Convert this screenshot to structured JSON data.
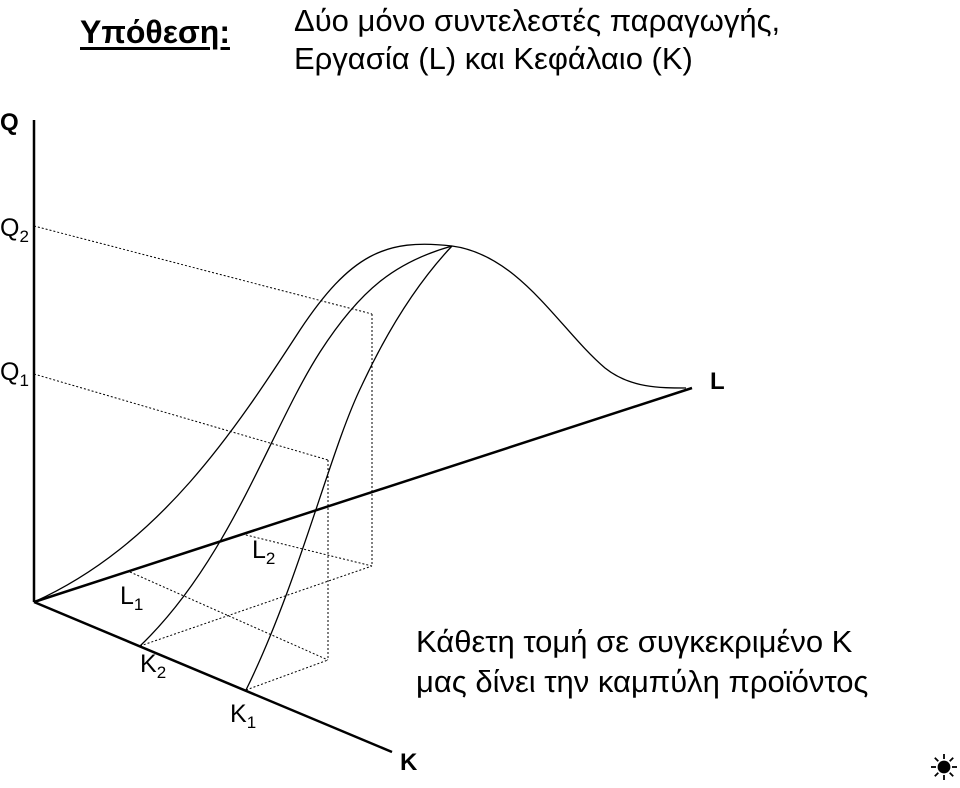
{
  "header": {
    "hypothesis_label": "Υπόθεση:",
    "hypothesis_line1": "Δύο μόνο συντελεστές παραγωγής,",
    "hypothesis_line2": "Εργασία (L) και Κεφάλαιο (K)"
  },
  "axes": {
    "q_label": "Q",
    "l_label": "L",
    "k_label": "K"
  },
  "points": {
    "q2": {
      "main": "Q",
      "sub": "2"
    },
    "q1": {
      "main": "Q",
      "sub": "1"
    },
    "l1": {
      "main": "L",
      "sub": "1"
    },
    "l2": {
      "main": "L",
      "sub": "2"
    },
    "k1": {
      "main": "K",
      "sub": "1"
    },
    "k2": {
      "main": "K",
      "sub": "2"
    }
  },
  "caption": {
    "line1": "Κάθετη τομή σε συγκεκριμένο K",
    "line2": "μας δίνει την καμπύλη προϊόντος"
  },
  "icons": {
    "corner": "sun-icon"
  },
  "colors": {
    "ink": "#000000",
    "background": "#ffffff"
  }
}
